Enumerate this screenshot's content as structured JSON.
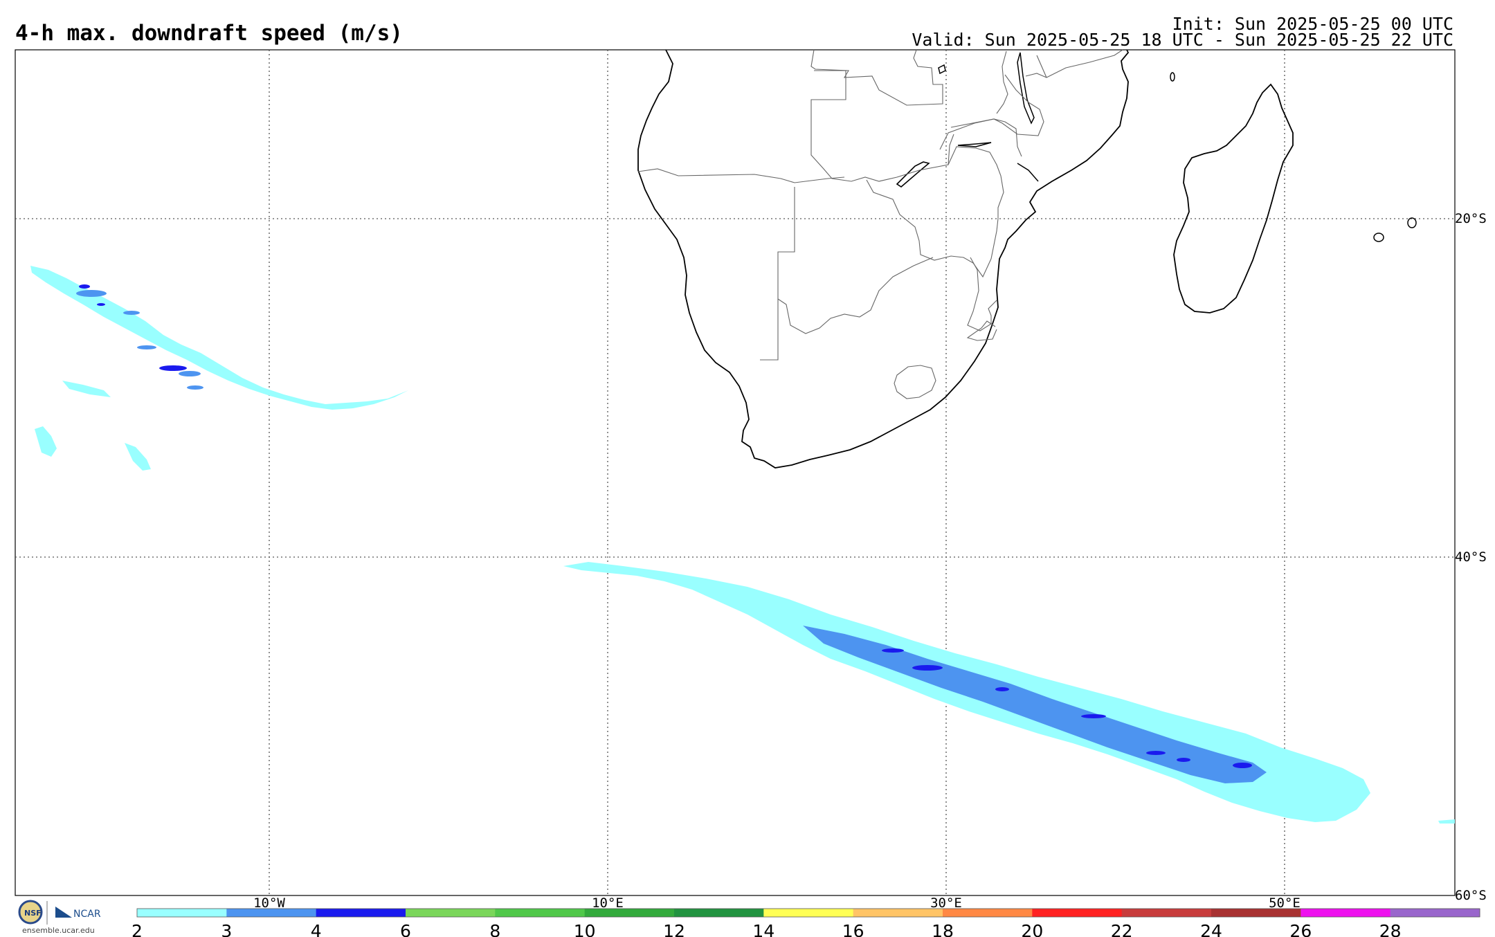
{
  "header": {
    "title": "4-h max. downdraft speed (m/s)",
    "init": "Init: Sun 2025-05-25 00 UTC",
    "valid": "Valid: Sun 2025-05-25 18 UTC - Sun 2025-05-25 22 UTC"
  },
  "map": {
    "region": "Southern Africa / South Atlantic / SW Indian Ocean",
    "lon_range": [
      -17.5,
      67.5
    ],
    "lat_range": [
      -60,
      -10
    ],
    "lon_gridlines": [
      -10,
      10,
      30,
      50
    ],
    "lat_gridlines": [
      -20,
      -40,
      -60
    ],
    "lon_labels": [
      "10°W",
      "10°E",
      "30°E",
      "50°E"
    ],
    "lat_labels": [
      "20°S",
      "40°S",
      "60°S"
    ],
    "grid": "dotted"
  },
  "colorbar": {
    "bounds": [
      "2",
      "3",
      "4",
      "6",
      "8",
      "10",
      "12",
      "14",
      "16",
      "18",
      "20",
      "22",
      "24",
      "26",
      "28"
    ],
    "colors": [
      "#99ffff",
      "#4d94f0",
      "#1a1aee",
      "#7ad65a",
      "#50c84a",
      "#33aa3c",
      "#229340",
      "#ffff55",
      "#ffc466",
      "#ff8844",
      "#ff2222",
      "#c83c3c",
      "#a83232",
      "#ee11ee",
      "#9966cc"
    ]
  },
  "logo": {
    "text": "NSF  NCAR",
    "url": "ensemble.ucar.edu"
  }
}
